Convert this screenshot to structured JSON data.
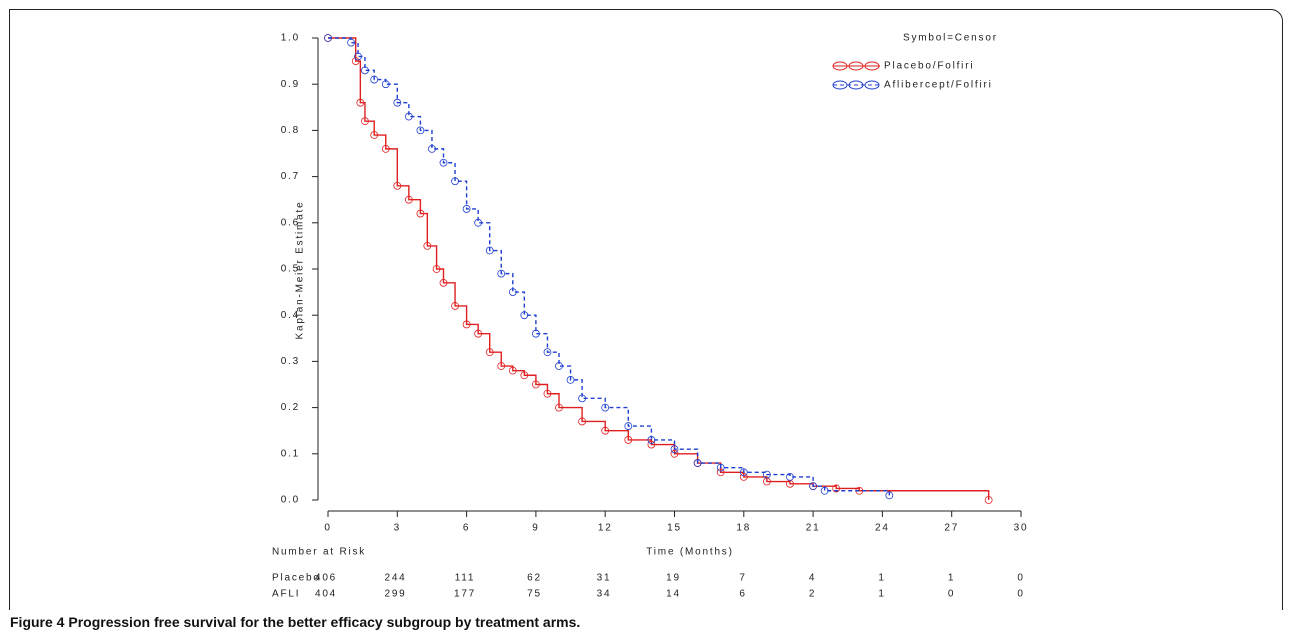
{
  "chart_data": {
    "type": "line",
    "step": "post",
    "xlabel": "Time (Months)",
    "ylabel": "Kaplan-Meier Estimate",
    "legend_title": "Symbol=Censor",
    "xlim": [
      0,
      30
    ],
    "xticks": [
      0,
      3,
      6,
      9,
      12,
      15,
      18,
      21,
      24,
      27,
      30
    ],
    "ylim": [
      0,
      1
    ],
    "yticks": [
      {
        "value": 0,
        "label": "0.0"
      },
      0.1,
      0.2,
      0.3,
      0.4,
      0.5,
      0.6,
      0.7,
      0.8,
      0.9,
      {
        "value": 1,
        "label": "1.0"
      }
    ],
    "series": [
      {
        "name": "Placebo/Folfiri",
        "color": "#e02020",
        "dashed": false,
        "x": [
          0,
          1.2,
          1.4,
          1.6,
          2,
          2.5,
          3,
          3.5,
          4,
          4.3,
          4.7,
          5,
          5.5,
          6,
          6.5,
          7,
          7.5,
          8,
          8.5,
          9,
          9.5,
          10,
          11,
          12,
          13,
          14,
          15,
          16,
          17,
          18,
          19,
          20,
          21,
          22,
          23,
          28.6
        ],
        "values": [
          1.0,
          0.95,
          0.86,
          0.82,
          0.79,
          0.76,
          0.68,
          0.65,
          0.62,
          0.55,
          0.5,
          0.47,
          0.42,
          0.38,
          0.36,
          0.32,
          0.29,
          0.28,
          0.27,
          0.25,
          0.23,
          0.2,
          0.17,
          0.15,
          0.13,
          0.12,
          0.1,
          0.08,
          0.06,
          0.05,
          0.04,
          0.035,
          0.03,
          0.025,
          0.02,
          0.0
        ]
      },
      {
        "name": "Aflibercept/Folfiri",
        "color": "#1f3fd0",
        "dashed": true,
        "x": [
          0,
          1,
          1.3,
          1.6,
          2,
          2.5,
          3,
          3.5,
          4,
          4.5,
          5,
          5.5,
          6,
          6.5,
          7,
          7.5,
          8,
          8.5,
          9,
          9.5,
          10,
          10.5,
          11,
          12,
          13,
          14,
          15,
          16,
          17,
          18,
          19,
          20,
          21,
          21.5,
          24.3
        ],
        "values": [
          1.0,
          0.99,
          0.96,
          0.93,
          0.91,
          0.9,
          0.86,
          0.83,
          0.8,
          0.76,
          0.73,
          0.69,
          0.63,
          0.6,
          0.54,
          0.49,
          0.45,
          0.4,
          0.36,
          0.32,
          0.29,
          0.26,
          0.22,
          0.2,
          0.16,
          0.13,
          0.11,
          0.08,
          0.07,
          0.06,
          0.055,
          0.05,
          0.03,
          0.02,
          0.01
        ]
      }
    ]
  },
  "risk_table": {
    "title": "Number at Risk",
    "rows": [
      {
        "label": "Placebo",
        "values": [
          406,
          244,
          111,
          62,
          31,
          19,
          7,
          4,
          1,
          1,
          0
        ]
      },
      {
        "label": "AFLI",
        "values": [
          404,
          299,
          177,
          75,
          34,
          14,
          6,
          2,
          1,
          0,
          0
        ]
      }
    ]
  },
  "caption": {
    "label": "Figure 4",
    "text": "Progression free survival for the better efficacy subgroup by treatment arms."
  }
}
